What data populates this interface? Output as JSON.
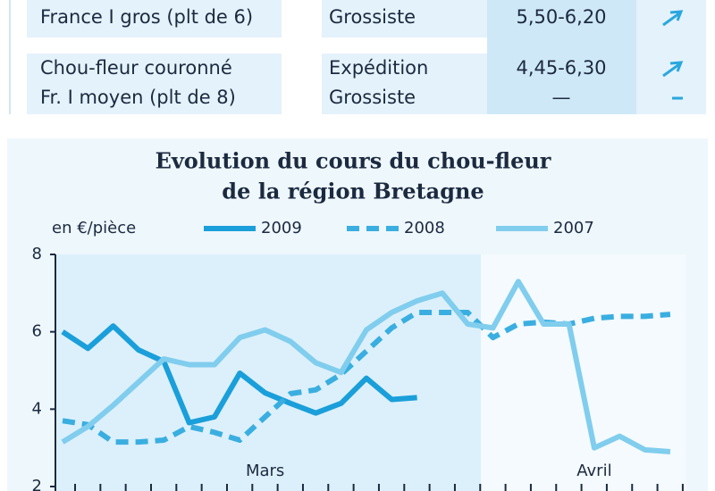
{
  "table": {
    "rows": [
      {
        "product": [
          "France I gros (plt de 6)"
        ],
        "stage": [
          "Grossiste"
        ],
        "price": [
          "5,50-6,20"
        ],
        "trend": [
          "up"
        ]
      },
      {
        "product": [
          "Chou-fleur couronné",
          "Fr. I moyen (plt de 8)"
        ],
        "stage": [
          "Expédition",
          "Grossiste"
        ],
        "price": [
          "4,45-6,30",
          "—"
        ],
        "trend": [
          "up",
          "flat"
        ]
      }
    ]
  },
  "chart_data": {
    "type": "line",
    "title": [
      "Evolution du cours du chou-fleur",
      "de la région Bretagne"
    ],
    "y_label": "en €/pièce",
    "categories": [
      null,
      null,
      null,
      null,
      null,
      null,
      null,
      null,
      "Mars",
      null,
      null,
      null,
      null,
      null,
      null,
      null,
      null,
      null,
      null,
      null,
      null,
      "Avril",
      null,
      null,
      null
    ],
    "ylim": [
      2,
      8
    ],
    "yticks": [
      2,
      4,
      6,
      8
    ],
    "series": [
      {
        "name": "2009",
        "color": "#1a9fda",
        "dash": false,
        "values": [
          6.0,
          5.57,
          6.15,
          5.53,
          5.23,
          3.65,
          3.8,
          4.93,
          4.42,
          4.15,
          3.9,
          4.15,
          4.8,
          4.25,
          4.3,
          null,
          null,
          null,
          null,
          null,
          null,
          null,
          null,
          null,
          null
        ]
      },
      {
        "name": "2008",
        "color": "#3aaee0",
        "dash": true,
        "values": [
          3.7,
          3.6,
          3.15,
          3.15,
          3.2,
          3.55,
          3.4,
          3.2,
          3.8,
          4.4,
          4.5,
          4.9,
          5.5,
          6.1,
          6.5,
          6.5,
          6.5,
          5.85,
          6.2,
          6.25,
          6.2,
          6.35,
          6.4,
          6.4,
          6.45
        ]
      },
      {
        "name": "2007",
        "color": "#80cdee",
        "dash": false,
        "values": [
          3.15,
          3.55,
          4.1,
          4.7,
          5.3,
          5.15,
          5.15,
          5.85,
          6.05,
          5.75,
          5.2,
          4.95,
          6.05,
          6.5,
          6.8,
          7.0,
          6.2,
          6.1,
          7.3,
          6.2,
          6.2,
          3.0,
          3.3,
          2.95,
          2.9
        ]
      }
    ]
  }
}
